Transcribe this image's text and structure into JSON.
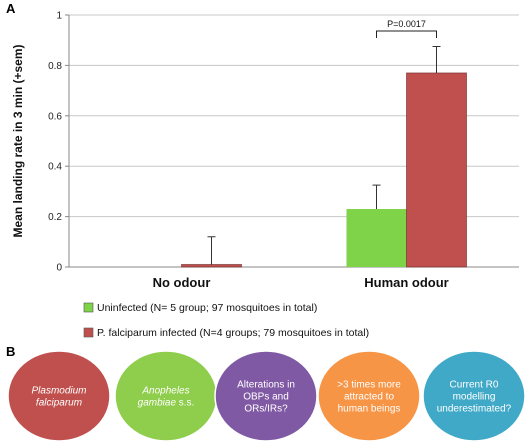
{
  "panel_a_label": "A",
  "panel_b_label": "B",
  "chart_data": {
    "type": "bar",
    "ylabel": "Mean landing rate in 3 min (+sem)",
    "xlabel": "",
    "ylim": [
      0,
      1
    ],
    "yticks": [
      0,
      0.2,
      0.4,
      0.6,
      0.8,
      1
    ],
    "grid": true,
    "legend_position": "bottom",
    "categories": [
      "No odour",
      "Human odour"
    ],
    "series": [
      {
        "name": "Uninfected (N= 5 group; 97 mosquitoes in total)",
        "color": "#7ed348",
        "values": [
          0,
          0.23
        ],
        "errors": [
          0,
          0.095
        ]
      },
      {
        "name": "P. falciparum infected (N=4 groups; 79 mosquitoes in total)",
        "color": "#c0504d",
        "values": [
          0.01,
          0.77
        ],
        "errors": [
          0.11,
          0.105
        ]
      }
    ],
    "annotations": [
      {
        "text": "P=0.0017",
        "category": "Human odour"
      }
    ]
  },
  "circles": [
    {
      "parts": [
        {
          "text": "Plasmodium",
          "italic": true
        },
        {
          "text": "falciparum",
          "italic": true
        }
      ],
      "color": "#c0504d"
    },
    {
      "parts": [
        {
          "text": "Anopheles",
          "italic": true
        },
        {
          "text": "gambiae",
          "italic": true,
          "suffix": " s.s."
        }
      ],
      "color": "#8fcd4c"
    },
    {
      "parts": [
        {
          "text": "Alterations in"
        },
        {
          "text": "OBPs and"
        },
        {
          "text": "ORs/IRs?"
        }
      ],
      "color": "#8059a4"
    },
    {
      "parts": [
        {
          "text": ">3 times more"
        },
        {
          "text": "attracted to"
        },
        {
          "text": "human beings"
        }
      ],
      "color": "#f79546"
    },
    {
      "parts": [
        {
          "text": "Current R0"
        },
        {
          "text": "modelling"
        },
        {
          "text": "underestimated?"
        }
      ],
      "color": "#41a9c8"
    }
  ]
}
